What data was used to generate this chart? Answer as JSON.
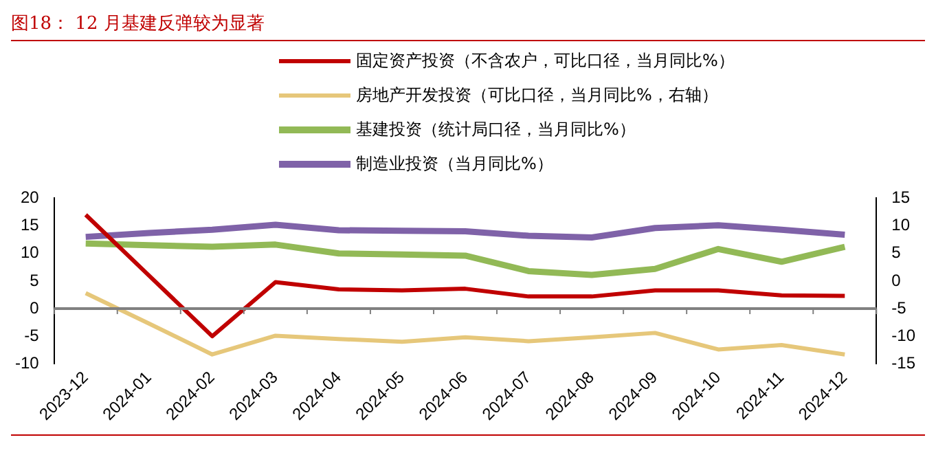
{
  "chart_data": {
    "type": "line",
    "title": "图18：  12 月基建反弹较为显著",
    "categories": [
      "2023-12",
      "2024-01",
      "2024-02",
      "2024-03",
      "2024-04",
      "2024-05",
      "2024-06",
      "2024-07",
      "2024-08",
      "2024-09",
      "2024-10",
      "2024-11",
      "2024-12"
    ],
    "series": [
      {
        "name": "固定资产投资（不含农户，可比口径，当月同比%）",
        "color": "#c00000",
        "values": [
          17,
          6,
          -5,
          4.8,
          3.5,
          3.3,
          3.6,
          2.2,
          2.2,
          3.3,
          3.3,
          2.4,
          2.3
        ]
      },
      {
        "name": "房地产开发投资（可比口径，当月同比%，右轴）",
        "color": "#e6c77a",
        "axis": "y2",
        "values": [
          -2.2,
          -7.7,
          -13.3,
          -9.9,
          -10.5,
          -11,
          -10.2,
          -10.9,
          -10.2,
          -9.4,
          -12.4,
          -11.6,
          -13.3
        ]
      },
      {
        "name": "基建投资（统计局口径，当月同比%）",
        "color": "#92b956",
        "values": [
          11.8,
          11.5,
          11.2,
          11.6,
          10,
          9.8,
          9.6,
          6.8,
          6.1,
          7.2,
          10.8,
          8.5,
          11.2
        ]
      },
      {
        "name": "制造业投资（当月同比%）",
        "color": "#7f62a8",
        "values": [
          13,
          13.7,
          14.3,
          15.2,
          14.2,
          14.1,
          14,
          13.2,
          12.9,
          14.6,
          15.1,
          14.3,
          13.4
        ]
      }
    ],
    "ylim": [
      -10,
      20
    ],
    "yticks": [
      -10,
      -5,
      0,
      5,
      10,
      15,
      20
    ],
    "y2lim": [
      -15,
      15
    ],
    "y2ticks": [
      -15,
      -10,
      -5,
      0,
      5,
      10,
      15
    ],
    "ref_lines": [
      {
        "axis": "y",
        "value": 0,
        "color": "#808080"
      }
    ],
    "grid": false,
    "legend": "top",
    "marker": "none",
    "line_style": "solid"
  }
}
